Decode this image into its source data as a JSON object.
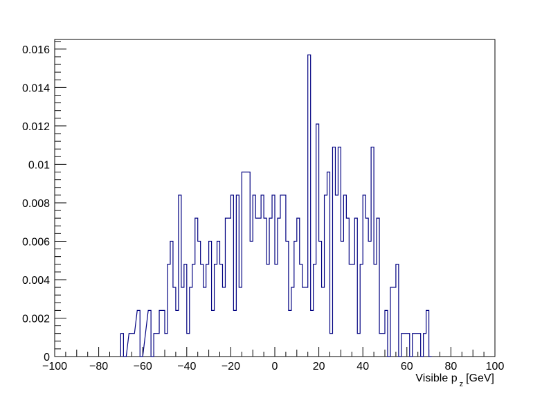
{
  "chart_data": {
    "type": "histogram",
    "title": "",
    "xlabel_main": "Visible p",
    "xlabel_sub": "z",
    "xlabel_unit": "[GeV]",
    "ylabel": "",
    "xlim": [
      -100,
      100
    ],
    "ylim": [
      0,
      0.0165
    ],
    "bin_width": 1.25,
    "x_ticks": [
      -100,
      -80,
      -60,
      -40,
      -20,
      0,
      20,
      40,
      60,
      80,
      100
    ],
    "x_tick_labels": [
      "−100",
      "−80",
      "−60",
      "−40",
      "−20",
      "0",
      "20",
      "40",
      "60",
      "80",
      "100"
    ],
    "y_ticks": [
      0,
      0.002,
      0.004,
      0.006,
      0.008,
      0.01,
      0.012,
      0.014,
      0.016
    ],
    "y_tick_labels": [
      "0",
      "0.002",
      "0.004",
      "0.006",
      "0.008",
      "0.01",
      "0.012",
      "0.014",
      "0.016"
    ],
    "line_color": "#000080",
    "series": [
      {
        "bins": [
          [
            -70,
            0.0012
          ],
          [
            -68.75,
            0
          ],
          [
            -66.25,
            0.0012
          ],
          [
            -65,
            0.0012
          ],
          [
            -62.5,
            0.0024
          ],
          [
            -61.25,
            0
          ],
          [
            -57.5,
            0.0024
          ],
          [
            -56.25,
            0
          ],
          [
            -55,
            0.0012
          ],
          [
            -53.75,
            0.0012
          ],
          [
            -52.5,
            0.0024
          ],
          [
            -51.25,
            0.0024
          ],
          [
            -50,
            0.0012
          ],
          [
            -48.75,
            0.0048
          ],
          [
            -47.5,
            0.006
          ],
          [
            -46.25,
            0.0036
          ],
          [
            -45,
            0.0024
          ],
          [
            -43.75,
            0.0084
          ],
          [
            -42.5,
            0.0036
          ],
          [
            -41.25,
            0.0048
          ],
          [
            -40,
            0.0012
          ],
          [
            -38.75,
            0.0036
          ],
          [
            -37.5,
            0.0048
          ],
          [
            -36.25,
            0.0072
          ],
          [
            -35,
            0.006
          ],
          [
            -33.75,
            0.0048
          ],
          [
            -32.5,
            0.0036
          ],
          [
            -31.25,
            0.0048
          ],
          [
            -30,
            0.006
          ],
          [
            -28.75,
            0.0024
          ],
          [
            -27.5,
            0.0048
          ],
          [
            -26.25,
            0.006
          ],
          [
            -25,
            0.0048
          ],
          [
            -23.75,
            0.0036
          ],
          [
            -22.5,
            0.0072
          ],
          [
            -21.25,
            0.0072
          ],
          [
            -20,
            0.0084
          ],
          [
            -18.75,
            0.0024
          ],
          [
            -17.5,
            0.0084
          ],
          [
            -16.25,
            0.0036
          ],
          [
            -15,
            0.0096
          ],
          [
            -13.75,
            0.0096
          ],
          [
            -12.5,
            0.0096
          ],
          [
            -11.25,
            0.006
          ],
          [
            -10,
            0.0084
          ],
          [
            -8.75,
            0.0072
          ],
          [
            -7.5,
            0.0072
          ],
          [
            -6.25,
            0.0084
          ],
          [
            -5,
            0.0072
          ],
          [
            -3.75,
            0.0048
          ],
          [
            -2.5,
            0.0072
          ],
          [
            -1.25,
            0.0084
          ],
          [
            0,
            0.0048
          ],
          [
            1.25,
            0.0072
          ],
          [
            2.5,
            0.0084
          ],
          [
            3.75,
            0.0084
          ],
          [
            5,
            0.006
          ],
          [
            6.25,
            0.0024
          ],
          [
            7.5,
            0.0036
          ],
          [
            8.75,
            0.006
          ],
          [
            10,
            0.0072
          ],
          [
            11.25,
            0.0048
          ],
          [
            12.5,
            0.0036
          ],
          [
            13.75,
            0.0036
          ],
          [
            15,
            0.0157
          ],
          [
            16.25,
            0.0024
          ],
          [
            17.5,
            0.0048
          ],
          [
            18.75,
            0.0121
          ],
          [
            20,
            0.006
          ],
          [
            21.25,
            0.0036
          ],
          [
            22.5,
            0.0084
          ],
          [
            23.75,
            0.0096
          ],
          [
            25,
            0.0012
          ],
          [
            26.25,
            0.0109
          ],
          [
            27.5,
            0.0084
          ],
          [
            28.75,
            0.0109
          ],
          [
            30,
            0.006
          ],
          [
            31.25,
            0.0084
          ],
          [
            32.5,
            0.0072
          ],
          [
            33.75,
            0.0048
          ],
          [
            35,
            0.0048
          ],
          [
            36.25,
            0.0072
          ],
          [
            37.5,
            0.0012
          ],
          [
            38.75,
            0.0048
          ],
          [
            40,
            0.0084
          ],
          [
            41.25,
            0.0072
          ],
          [
            42.5,
            0.006
          ],
          [
            43.75,
            0.0109
          ],
          [
            45,
            0.0048
          ],
          [
            46.25,
            0.0072
          ],
          [
            47.5,
            0.0012
          ],
          [
            48.75,
            0.0012
          ],
          [
            50,
            0.0024
          ],
          [
            51.25,
            0
          ],
          [
            52.5,
            0.0036
          ],
          [
            53.75,
            0.0036
          ],
          [
            55,
            0.0048
          ],
          [
            56.25,
            0
          ],
          [
            57.5,
            0.0012
          ],
          [
            58.75,
            0.0012
          ],
          [
            60,
            0.0012
          ],
          [
            61.25,
            0
          ],
          [
            62.5,
            0.0012
          ],
          [
            63.75,
            0.0012
          ],
          [
            65,
            0.0012
          ],
          [
            66.25,
            0
          ],
          [
            67.5,
            0.0012
          ],
          [
            68.75,
            0.0024
          ],
          [
            70,
            0
          ]
        ]
      }
    ]
  }
}
